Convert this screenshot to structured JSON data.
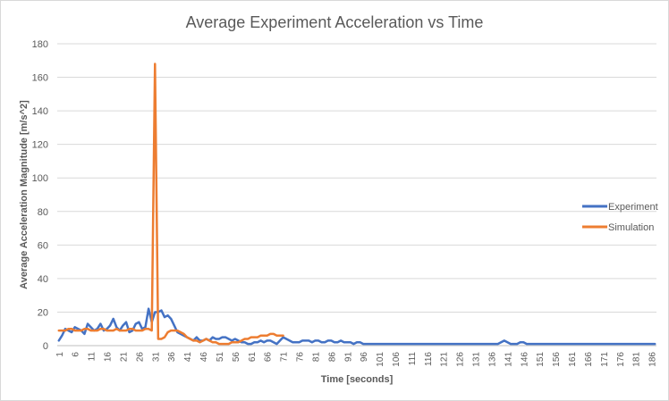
{
  "chart_data": {
    "type": "line",
    "title": "Average Experiment Acceleration vs Time",
    "xlabel": "Time [seconds]",
    "ylabel": "Average Acceleration  Magnitude  [m/s^2]",
    "ylim": [
      0,
      180
    ],
    "yticks": [
      0,
      20,
      40,
      60,
      80,
      100,
      120,
      140,
      160,
      180
    ],
    "x_start": 1,
    "x_end": 187,
    "x_tick_labels": [
      "1",
      "6",
      "11",
      "16",
      "21",
      "26",
      "31",
      "36",
      "41",
      "46",
      "51",
      "56",
      "61",
      "66",
      "71",
      "76",
      "81",
      "86",
      "91",
      "96",
      "101",
      "106",
      "111",
      "116",
      "121",
      "126",
      "131",
      "136",
      "141",
      "146",
      "151",
      "156",
      "161",
      "166",
      "171",
      "176",
      "181",
      "186"
    ],
    "grid": true,
    "legend_position": "right",
    "series": [
      {
        "name": "Experiment",
        "color": "#4472c4",
        "x_start": 1,
        "values": [
          3,
          6,
          10,
          9,
          8,
          11,
          10,
          9,
          7,
          13,
          11,
          9,
          10,
          13,
          9,
          10,
          12,
          16,
          11,
          9,
          12,
          14,
          8,
          9,
          13,
          14,
          10,
          11,
          22,
          14,
          20,
          20,
          21,
          17,
          18,
          16,
          12,
          8,
          7,
          6,
          5,
          4,
          3,
          5,
          3,
          3,
          4,
          3,
          5,
          4,
          4,
          5,
          5,
          4,
          3,
          4,
          3,
          2,
          2,
          1,
          1,
          2,
          2,
          3,
          2,
          3,
          3,
          2,
          1,
          3,
          5,
          4,
          3,
          2,
          2,
          2,
          3,
          3,
          3,
          2,
          3,
          3,
          2,
          2,
          3,
          3,
          2,
          2,
          3,
          2,
          2,
          2,
          1,
          2,
          2,
          1,
          1,
          1,
          1,
          1,
          1,
          1,
          1,
          1,
          1,
          1,
          1,
          1,
          1,
          1,
          1,
          1,
          1,
          1,
          1,
          1,
          1,
          1,
          1,
          1,
          1,
          1,
          1,
          1,
          1,
          1,
          1,
          1,
          1,
          1,
          1,
          1,
          1,
          1,
          1,
          1,
          1,
          1,
          2,
          3,
          2,
          1,
          1,
          1,
          2,
          2,
          1,
          1,
          1,
          1,
          1,
          1,
          1,
          1,
          1,
          1,
          1,
          1,
          1,
          1,
          1,
          1,
          1,
          1,
          1,
          1,
          1,
          1,
          1,
          1,
          1,
          1,
          1,
          1,
          1,
          1,
          1,
          1,
          1,
          1,
          1,
          1,
          1,
          1,
          1,
          1,
          1
        ]
      },
      {
        "name": "Simulation",
        "color": "#ed7d31",
        "x_start": 1,
        "values": [
          9,
          9,
          9,
          10,
          10,
          9,
          9,
          9,
          10,
          10,
          9,
          9,
          9,
          10,
          10,
          9,
          9,
          9,
          10,
          9,
          9,
          9,
          10,
          10,
          9,
          9,
          9,
          10,
          10,
          9,
          168,
          4,
          4,
          5,
          8,
          9,
          9,
          9,
          8,
          7,
          5,
          4,
          3,
          3,
          2,
          3,
          4,
          3,
          2,
          2,
          1,
          1,
          1,
          1,
          2,
          2,
          2,
          3,
          4,
          4,
          5,
          5,
          5,
          6,
          6,
          6,
          7,
          7,
          6,
          6,
          6
        ]
      }
    ]
  }
}
